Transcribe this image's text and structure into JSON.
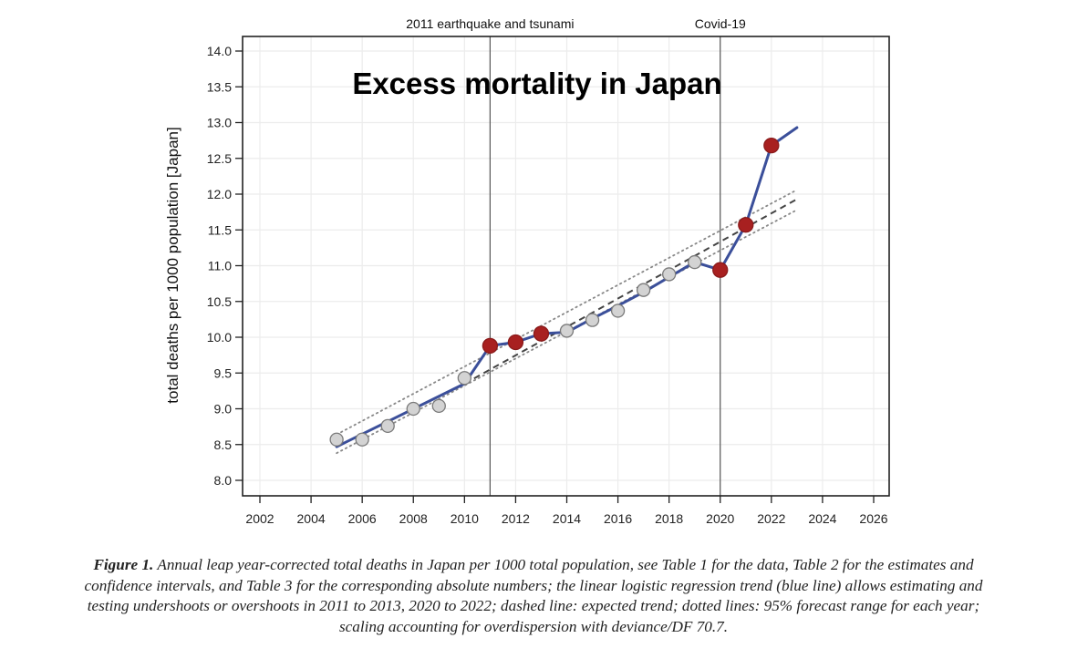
{
  "chart_data": {
    "type": "line",
    "title": "Excess mortality in Japan",
    "xlabel": "",
    "ylabel": "total deaths per 1000 population [Japan]",
    "xlim": [
      2001.3,
      2026.6
    ],
    "ylim": [
      7.8,
      14.2
    ],
    "x_ticks": [
      2002,
      2004,
      2006,
      2008,
      2010,
      2012,
      2014,
      2016,
      2018,
      2020,
      2022,
      2024,
      2026
    ],
    "y_ticks": [
      8.0,
      8.5,
      9.0,
      9.5,
      10.0,
      10.5,
      11.0,
      11.5,
      12.0,
      12.5,
      13.0,
      13.5,
      14.0
    ],
    "grid": true,
    "annotations": [
      {
        "x": 2011,
        "label": "2011 earthquake and tsunami"
      },
      {
        "x": 2020,
        "label": "Covid-19"
      }
    ],
    "observed": {
      "name": "Annual total deaths per 1000",
      "x": [
        2005,
        2006,
        2007,
        2008,
        2009,
        2010,
        2011,
        2012,
        2013,
        2014,
        2015,
        2016,
        2017,
        2018,
        2019,
        2020,
        2021,
        2022
      ],
      "y": [
        8.57,
        8.57,
        8.76,
        9.0,
        9.04,
        9.43,
        9.88,
        9.93,
        10.05,
        10.09,
        10.24,
        10.37,
        10.66,
        10.88,
        11.05,
        10.94,
        11.57,
        12.68
      ],
      "highlighted_years": [
        2011,
        2012,
        2013,
        2020,
        2021,
        2022
      ],
      "normal_color": "#d3d3d3",
      "highlight_color": "#a82020"
    },
    "series": [
      {
        "name": "linear logistic regression trend (blue line)",
        "style": "solid",
        "color": "#3b4f9a",
        "x": [
          2005,
          2010,
          2011,
          2012,
          2013,
          2014,
          2015,
          2016,
          2017,
          2018,
          2019,
          2020,
          2021,
          2022,
          2023
        ],
        "y": [
          8.47,
          9.35,
          9.88,
          9.93,
          10.05,
          10.07,
          10.26,
          10.44,
          10.63,
          10.84,
          11.05,
          10.94,
          11.57,
          12.68,
          12.93
        ]
      },
      {
        "name": "expected trend (dashed line)",
        "style": "dashed",
        "color": "#444444",
        "x": [
          2010,
          2023
        ],
        "y": [
          9.35,
          11.93
        ]
      },
      {
        "name": "95% forecast range upper (dotted)",
        "style": "dotted",
        "color": "#888888",
        "x": [
          2005,
          2023
        ],
        "y": [
          8.64,
          12.06
        ]
      },
      {
        "name": "95% forecast range lower (dotted)",
        "style": "dotted",
        "color": "#888888",
        "x": [
          2005,
          2023
        ],
        "y": [
          8.38,
          11.78
        ]
      }
    ]
  },
  "caption": {
    "lead": "Figure 1.",
    "lines": [
      " Annual leap year-corrected total deaths in Japan per 1000 total population, see Table 1 for the data, Table 2 for the estimates and",
      "confidence intervals, and Table 3 for the corresponding absolute numbers; the linear logistic regression trend (blue line) allows estimating and",
      "testing undershoots or overshoots in 2011 to 2013, 2020 to 2022; dashed line: expected trend; dotted lines: 95% forecast range for each year;",
      "scaling accounting for overdispersion with deviance/DF 70.7."
    ]
  }
}
